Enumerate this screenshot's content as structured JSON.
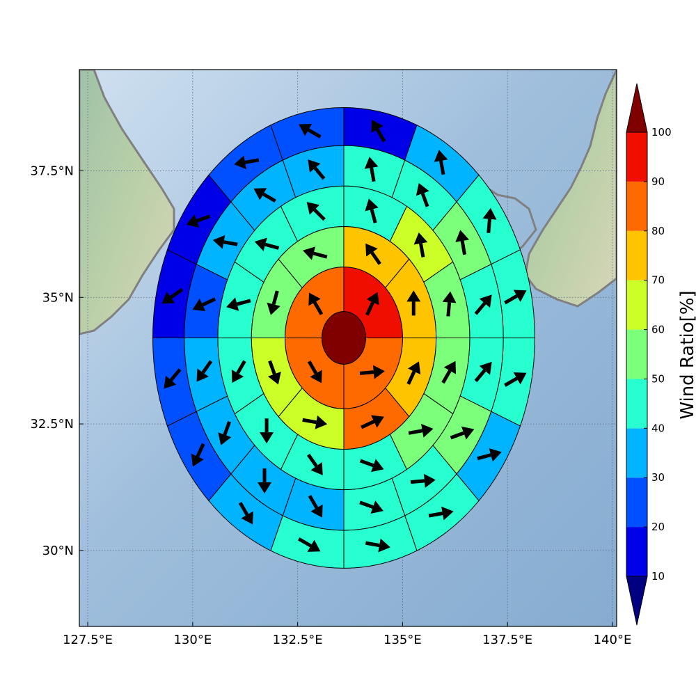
{
  "chart_data": {
    "type": "heatmap",
    "title": "",
    "xlabel": "",
    "ylabel": "",
    "map_extent": {
      "lon": [
        127.3,
        140.1
      ],
      "lat": [
        28.5,
        39.5
      ]
    },
    "x_ticks": [
      127.5,
      130,
      132.5,
      135,
      137.5,
      140
    ],
    "x_tick_labels": [
      "127.5°E",
      "130°E",
      "132.5°E",
      "135°E",
      "137.5°E",
      "140°E"
    ],
    "y_ticks": [
      30,
      32.5,
      35,
      37.5
    ],
    "y_tick_labels": [
      "30°N",
      "32.5°N",
      "35°N",
      "37.5°N"
    ],
    "grid": true,
    "polar_grid": {
      "center_lon": 133.6,
      "center_lat": 34.2,
      "ring_radius_deg": [
        0.52,
        1.4,
        2.2,
        3.0,
        3.8,
        4.55
      ],
      "sectors_per_ring": [
        1,
        4,
        8,
        12,
        16,
        16
      ],
      "first_sector_start_deg": 90,
      "direction": "clockwise"
    },
    "ring_values": [
      [
        100
      ],
      [
        85,
        80,
        85,
        90
      ],
      [
        75,
        80,
        65,
        65,
        55,
        55,
        70,
        75
      ],
      [
        55,
        55,
        45,
        45,
        45,
        40,
        45,
        45,
        45,
        40,
        65,
        55
      ],
      [
        45,
        50,
        45,
        45,
        35,
        30,
        30,
        35,
        25,
        35,
        35,
        35,
        45,
        45,
        50,
        40
      ],
      [
        45,
        35,
        45,
        45,
        45,
        35,
        25,
        20,
        15,
        15,
        25,
        25,
        15,
        35,
        45,
        45
      ]
    ],
    "arrow_directions_deg_from_north": [
      [],
      [
        85,
        150,
        330,
        25
      ],
      [
        25,
        65,
        100,
        160,
        195,
        285,
        325,
        360
      ],
      [
        30,
        80,
        110,
        145,
        180,
        210,
        255,
        285,
        315,
        345,
        350,
        5
      ],
      [
        40,
        70,
        85,
        110,
        150,
        180,
        200,
        215,
        245,
        280,
        300,
        320,
        350,
        340,
        350,
        40
      ],
      [
        60,
        75,
        80,
        100,
        120,
        150,
        205,
        220,
        235,
        250,
        260,
        300,
        330,
        350,
        5,
        60
      ]
    ],
    "colorbar": {
      "label": "Wind Ratio[%]",
      "bounds": [
        10,
        20,
        30,
        40,
        50,
        60,
        70,
        80,
        90,
        100
      ],
      "tick_labels": [
        "10",
        "20",
        "30",
        "40",
        "50",
        "60",
        "70",
        "80",
        "90",
        "100"
      ],
      "colors": [
        "#0000e8",
        "#0050ff",
        "#00b4ff",
        "#28ffd0",
        "#7cff7a",
        "#ccff28",
        "#ffc400",
        "#ff6a00",
        "#f00e00"
      ],
      "under_color": "#000080",
      "over_color": "#800000",
      "extend": "both"
    }
  }
}
